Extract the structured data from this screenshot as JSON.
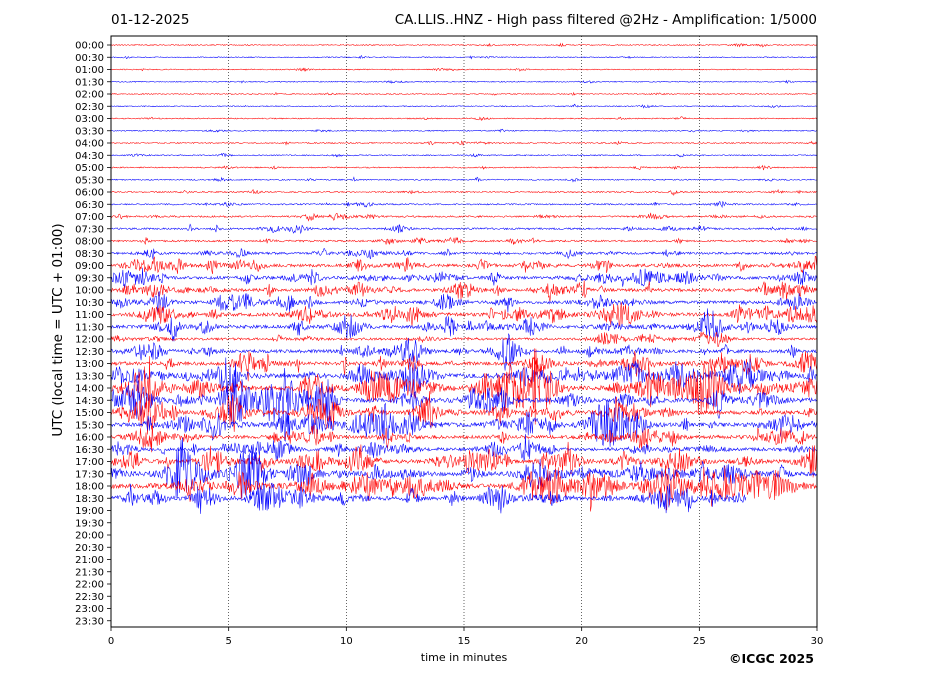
{
  "header": {
    "date": "01-12-2025",
    "title": "CA.LLIS..HNZ - High pass filtered @2Hz - Amplification: 1/5000"
  },
  "footer": {
    "copyright": "©ICGC 2025"
  },
  "chart_data": {
    "type": "line",
    "title": "CA.LLIS..HNZ - High pass filtered @2Hz - Amplification: 1/5000",
    "xlabel": "time in minutes",
    "ylabel": "UTC (local time = UTC + 01:00)",
    "xlim": [
      0,
      30
    ],
    "x_ticks": [
      "0",
      "5",
      "10",
      "15",
      "20",
      "25",
      "30"
    ],
    "y_ticks": [
      "00:00",
      "00:30",
      "01:00",
      "01:30",
      "02:00",
      "02:30",
      "03:00",
      "03:30",
      "04:00",
      "04:30",
      "05:00",
      "05:30",
      "06:00",
      "06:30",
      "07:00",
      "07:30",
      "08:00",
      "08:30",
      "09:00",
      "09:30",
      "10:00",
      "10:30",
      "11:00",
      "11:30",
      "12:00",
      "12:30",
      "13:00",
      "13:30",
      "14:00",
      "14:30",
      "15:00",
      "15:30",
      "16:00",
      "16:30",
      "17:00",
      "17:30",
      "18:00",
      "18:30",
      "19:00",
      "19:30",
      "20:00",
      "20:30",
      "21:00",
      "21:30",
      "22:00",
      "22:30",
      "23:00",
      "23:30"
    ],
    "grid": "vertical dotted at 5-minute marks",
    "trace_colors": [
      "#ff0000",
      "#0000ff"
    ],
    "traces_recorded": 38,
    "last_trace_end_minute": 27,
    "activity_level": [
      0.05,
      0.05,
      0.05,
      0.05,
      0.05,
      0.05,
      0.06,
      0.06,
      0.08,
      0.08,
      0.08,
      0.08,
      0.12,
      0.15,
      0.2,
      0.22,
      0.22,
      0.3,
      0.45,
      0.5,
      0.55,
      0.5,
      0.6,
      0.55,
      0.35,
      0.55,
      0.6,
      0.8,
      0.85,
      0.8,
      0.7,
      0.75,
      0.6,
      0.55,
      0.7,
      0.8,
      0.85,
      0.7
    ]
  }
}
